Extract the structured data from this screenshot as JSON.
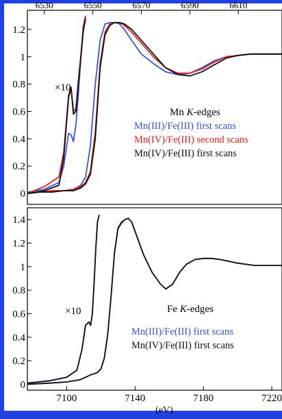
{
  "colors": {
    "border_blue": "#2142e0",
    "series_blue": "#3a52d8",
    "series_red": "#e01a1a",
    "series_black": "#111111"
  },
  "chart_data": [
    {
      "type": "line",
      "title": "",
      "xlabel": "",
      "ylabel": "",
      "x_axis_position": "top",
      "xlim": [
        6523,
        6628
      ],
      "ylim": [
        -0.08,
        1.34
      ],
      "xticks": [
        6530,
        6550,
        6570,
        6590,
        6610
      ],
      "xtick_labels": [
        "6530",
        "6550",
        "6570",
        "6590",
        "6610"
      ],
      "yticks": [
        0,
        0.2,
        0.4,
        0.6,
        0.8,
        1,
        1.2
      ],
      "ytick_labels": [
        "0",
        "0.2",
        "0.4",
        "0.6",
        "0.8",
        "1",
        "1.2"
      ],
      "panel_label": "Mn",
      "panel_label_italic": "K",
      "panel_label_suffix": "-edges",
      "inset_label": "×10",
      "series": [
        {
          "name": "Mn(III)/Fe(III) first scans",
          "color": "#3a52d8",
          "x": [
            6523,
            6528,
            6533,
            6538,
            6542,
            6545,
            6547,
            6549,
            6551,
            6553,
            6555,
            6557,
            6559,
            6561,
            6563,
            6566,
            6570,
            6575,
            6580,
            6585,
            6590,
            6595,
            6600,
            6605,
            6610,
            6615,
            6620,
            6628
          ],
          "values": [
            0,
            0.01,
            0.01,
            0.02,
            0.03,
            0.06,
            0.12,
            0.35,
            0.8,
            1.12,
            1.24,
            1.25,
            1.25,
            1.24,
            1.2,
            1.12,
            1.02,
            0.95,
            0.89,
            0.87,
            0.88,
            0.92,
            0.97,
            1.0,
            1.01,
            1.02,
            1.02,
            1.02
          ]
        },
        {
          "name": "Mn(IV)/Fe(III) second scans",
          "color": "#e01a1a",
          "x": [
            6523,
            6528,
            6533,
            6538,
            6542,
            6545,
            6547,
            6549,
            6551,
            6553,
            6555,
            6557,
            6559,
            6561,
            6563,
            6566,
            6570,
            6575,
            6580,
            6585,
            6590,
            6595,
            6600,
            6605,
            6610,
            6615,
            6620,
            6628
          ],
          "values": [
            0,
            0.01,
            0.02,
            0.02,
            0.03,
            0.05,
            0.08,
            0.16,
            0.45,
            0.95,
            1.18,
            1.24,
            1.25,
            1.25,
            1.23,
            1.18,
            1.1,
            1.0,
            0.92,
            0.88,
            0.88,
            0.91,
            0.96,
            1.0,
            1.01,
            1.02,
            1.02,
            1.02
          ]
        },
        {
          "name": "Mn(IV)/Fe(III) first scans",
          "color": "#111111",
          "x": [
            6523,
            6528,
            6533,
            6538,
            6542,
            6545,
            6547,
            6549,
            6551,
            6553,
            6555,
            6557,
            6559,
            6561,
            6563,
            6566,
            6570,
            6575,
            6580,
            6585,
            6590,
            6595,
            6600,
            6605,
            6610,
            6615,
            6620,
            6628
          ],
          "values": [
            0,
            0.01,
            0.01,
            0.02,
            0.02,
            0.04,
            0.07,
            0.14,
            0.4,
            0.92,
            1.16,
            1.23,
            1.25,
            1.25,
            1.24,
            1.2,
            1.12,
            1.02,
            0.92,
            0.87,
            0.86,
            0.89,
            0.94,
            0.99,
            1.01,
            1.02,
            1.02,
            1.02
          ]
        }
      ],
      "inset_series": [
        {
          "name": "Mn(III)/Fe(III) first scans ×10",
          "color": "#3a52d8",
          "x": [
            6523,
            6530,
            6536,
            6538,
            6540,
            6541,
            6542,
            6543,
            6544,
            6545,
            6546,
            6547
          ],
          "values": [
            0.01,
            0.03,
            0.08,
            0.2,
            0.44,
            0.43,
            0.38,
            0.5,
            0.72,
            0.98,
            1.22,
            1.3
          ]
        },
        {
          "name": "Mn(IV)/Fe(III) second scans ×10",
          "color": "#e01a1a",
          "x": [
            6523,
            6530,
            6536,
            6538,
            6540,
            6541,
            6542,
            6543,
            6544,
            6545,
            6546,
            6547
          ],
          "values": [
            0.0,
            0.05,
            0.12,
            0.3,
            0.72,
            0.78,
            0.6,
            0.62,
            0.82,
            1.0,
            1.2,
            1.3
          ]
        },
        {
          "name": "Mn(IV)/Fe(III) first scans ×10",
          "color": "#111111",
          "x": [
            6523,
            6530,
            6536,
            6538,
            6540,
            6541,
            6542,
            6543,
            6544,
            6545,
            6546,
            6547
          ],
          "values": [
            0.0,
            0.02,
            0.06,
            0.26,
            0.7,
            0.77,
            0.58,
            0.6,
            0.8,
            0.98,
            1.18,
            1.28
          ]
        }
      ]
    },
    {
      "type": "line",
      "title": "",
      "xlabel": "(eV)",
      "ylabel": "",
      "x_axis_position": "bottom",
      "xlim": [
        7077,
        7226
      ],
      "ylim": [
        -0.05,
        1.5
      ],
      "xticks": [
        7100,
        7140,
        7180,
        7220
      ],
      "xtick_labels": [
        "7100",
        "7140",
        "7180",
        "7220"
      ],
      "yticks": [
        0,
        0.2,
        0.4,
        0.6,
        0.8,
        1,
        1.2,
        1.4
      ],
      "ytick_labels": [
        "0",
        "0.2",
        "0.4",
        "0.6",
        "0.8",
        "1",
        "1.2",
        "1.4"
      ],
      "panel_label": "Fe",
      "panel_label_italic": "K",
      "panel_label_suffix": "-edges",
      "inset_label": "×10",
      "series": [
        {
          "name": "Mn(III)/Fe(III) first scans",
          "color": "#3a52d8",
          "x": [
            7077,
            7090,
            7100,
            7108,
            7114,
            7118,
            7120,
            7122,
            7124,
            7126,
            7128,
            7130,
            7132,
            7134,
            7136,
            7138,
            7140,
            7145,
            7150,
            7155,
            7158,
            7162,
            7166,
            7170,
            7175,
            7180,
            7185,
            7190,
            7200,
            7210,
            7220,
            7226
          ],
          "values": [
            0,
            0.01,
            0.02,
            0.04,
            0.08,
            0.1,
            0.13,
            0.22,
            0.42,
            0.75,
            1.12,
            1.33,
            1.38,
            1.4,
            1.41,
            1.38,
            1.3,
            1.1,
            0.95,
            0.85,
            0.81,
            0.85,
            0.95,
            1.02,
            1.06,
            1.07,
            1.07,
            1.06,
            1.03,
            1.01,
            1.01,
            1.01
          ]
        },
        {
          "name": "Mn(IV)/Fe(III) first scans",
          "color": "#111111",
          "x": [
            7077,
            7090,
            7100,
            7108,
            7114,
            7118,
            7120,
            7122,
            7124,
            7126,
            7128,
            7130,
            7132,
            7134,
            7136,
            7138,
            7140,
            7145,
            7150,
            7155,
            7158,
            7162,
            7166,
            7170,
            7175,
            7180,
            7185,
            7190,
            7200,
            7210,
            7220,
            7226
          ],
          "values": [
            0,
            0.01,
            0.02,
            0.04,
            0.08,
            0.1,
            0.13,
            0.22,
            0.42,
            0.75,
            1.12,
            1.32,
            1.37,
            1.4,
            1.41,
            1.38,
            1.3,
            1.1,
            0.95,
            0.85,
            0.81,
            0.85,
            0.95,
            1.02,
            1.06,
            1.07,
            1.07,
            1.06,
            1.03,
            1.01,
            1.01,
            1.01
          ]
        }
      ],
      "inset_series": [
        {
          "name": "Mn(III)/Fe(III) first scans ×10",
          "color": "#3a52d8",
          "x": [
            7077,
            7090,
            7100,
            7106,
            7109,
            7111,
            7113,
            7114,
            7115,
            7116,
            7117,
            7118,
            7119
          ],
          "values": [
            0.01,
            0.03,
            0.06,
            0.12,
            0.3,
            0.5,
            0.53,
            0.5,
            0.6,
            0.85,
            1.15,
            1.38,
            1.44
          ]
        },
        {
          "name": "Mn(IV)/Fe(III) first scans ×10",
          "color": "#111111",
          "x": [
            7077,
            7090,
            7100,
            7106,
            7109,
            7111,
            7113,
            7114,
            7115,
            7116,
            7117,
            7118,
            7119
          ],
          "values": [
            0.01,
            0.03,
            0.06,
            0.12,
            0.3,
            0.5,
            0.53,
            0.5,
            0.6,
            0.85,
            1.15,
            1.38,
            1.44
          ]
        }
      ]
    }
  ]
}
